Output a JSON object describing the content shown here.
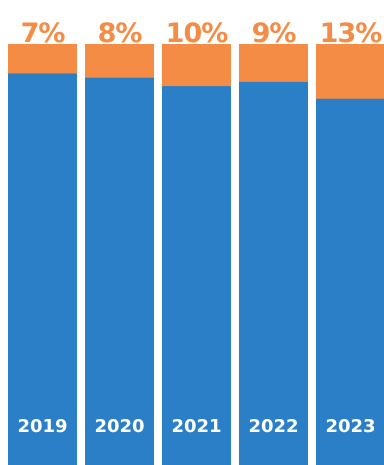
{
  "chart_data": {
    "type": "bar",
    "stacked": true,
    "percent_stacked": true,
    "categories": [
      "2019",
      "2020",
      "2021",
      "2022",
      "2023"
    ],
    "series": [
      {
        "values": [
          93,
          92,
          90,
          91,
          87
        ]
      },
      {
        "values": [
          7,
          8,
          10,
          9,
          13
        ]
      }
    ],
    "data_labels": [
      "7%",
      "8%",
      "10%",
      "9%",
      "13%"
    ],
    "ylim": [
      0,
      100
    ],
    "grid": false,
    "legend": "none",
    "colors": {
      "base": "#2a7fc6",
      "top": "#f58c45",
      "background": "#ffffff",
      "year_text": "#ffffff"
    }
  }
}
